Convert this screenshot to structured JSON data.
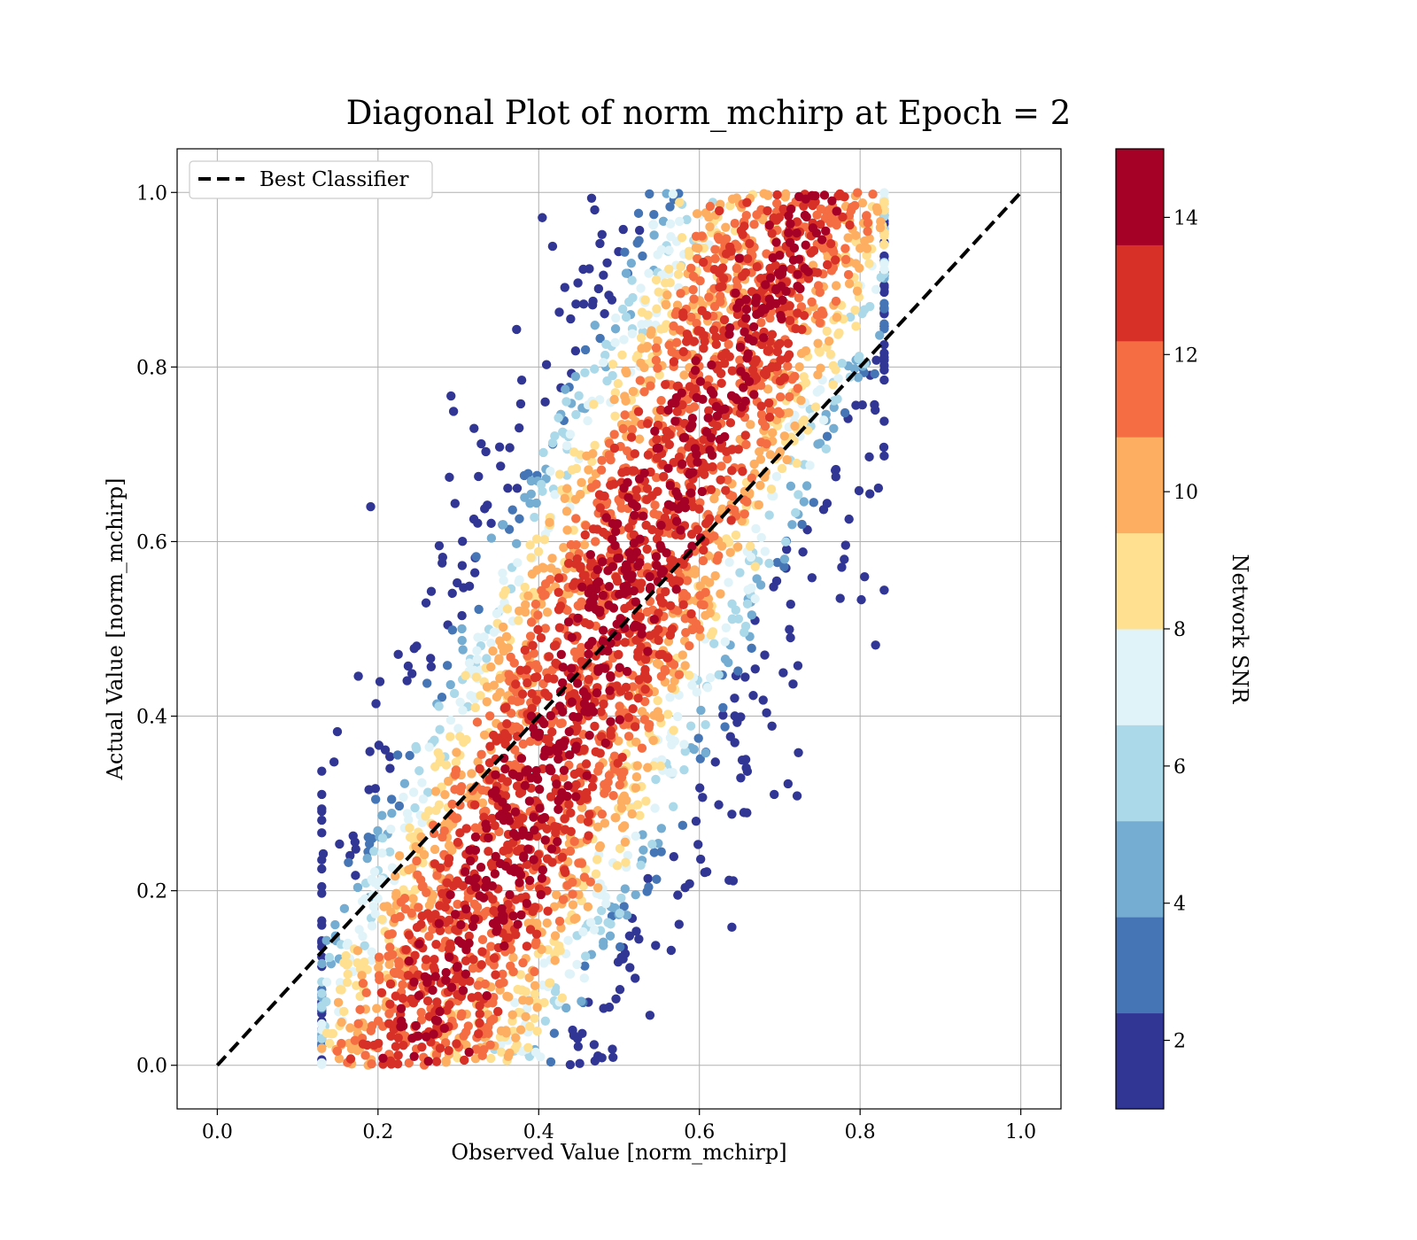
{
  "chart_data": {
    "type": "scatter",
    "title": "Diagonal Plot of norm_mchirp at Epoch = 2",
    "xlabel": "Observed Value [norm_mchirp]",
    "ylabel": "Actual Value [norm_mchirp]",
    "xlim": [
      -0.05,
      1.05
    ],
    "ylim": [
      -0.05,
      1.05
    ],
    "xticks": [
      "0.0",
      "0.2",
      "0.4",
      "0.6",
      "0.8",
      "1.0"
    ],
    "yticks": [
      "0.0",
      "0.2",
      "0.4",
      "0.6",
      "0.8",
      "1.0"
    ],
    "grid": true,
    "legend": {
      "position": "upper left",
      "entries": [
        {
          "label": "Best Classifier",
          "style": "dashed",
          "color": "#000000"
        }
      ]
    },
    "reference_line": {
      "name": "Best Classifier",
      "x": [
        0.0,
        1.0
      ],
      "y": [
        0.0,
        1.0
      ]
    },
    "scatter": {
      "description_fields": [
        "observed",
        "actual",
        "network_snr"
      ],
      "approx_points": 4000,
      "observed_range": [
        0.13,
        0.83
      ],
      "actual_range": [
        0.0,
        1.0
      ],
      "note_on_shape": "dense band around diagonal, higher SNR points nearest the diagonal"
    },
    "colorbar": {
      "label": "Network SNR",
      "min": 1,
      "max": 15,
      "ticks": [
        "2",
        "4",
        "6",
        "8",
        "10",
        "12",
        "14"
      ],
      "tick_values": [
        2,
        4,
        6,
        8,
        10,
        12,
        14
      ],
      "colors": [
        "#313695",
        "#4575b4",
        "#74add1",
        "#abd9e9",
        "#e0f3f8",
        "#fee090",
        "#fdae61",
        "#f46d43",
        "#d73027",
        "#a50026"
      ]
    }
  }
}
